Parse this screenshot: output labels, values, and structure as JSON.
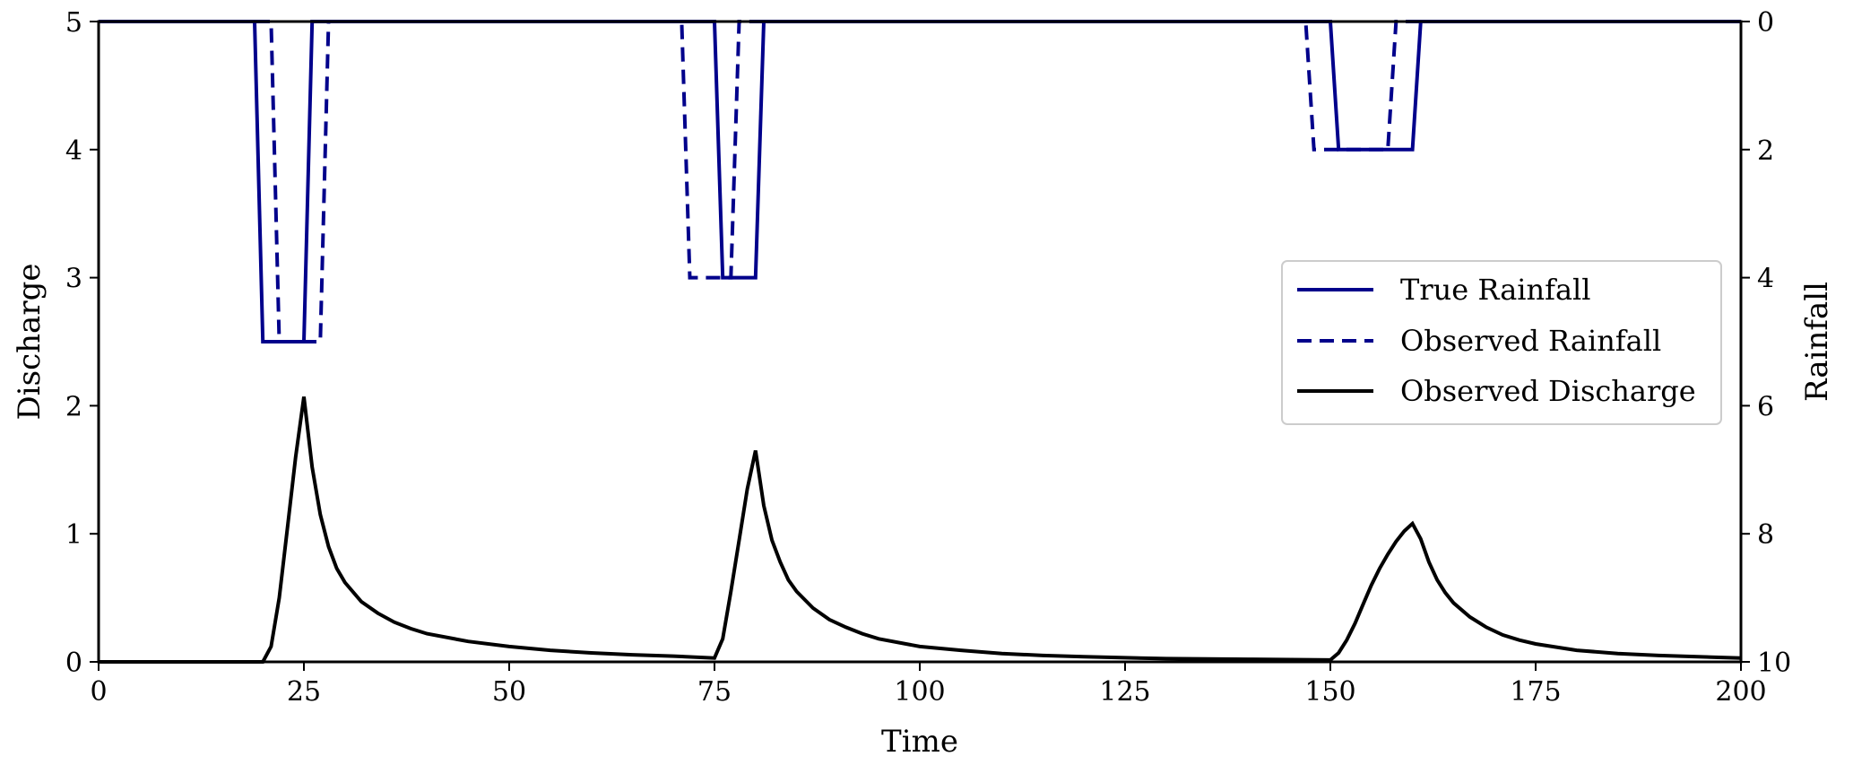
{
  "chart_data": {
    "type": "line",
    "title": "",
    "xlabel": "Time",
    "ylabel_left": "Discharge",
    "ylabel_right": "Rainfall",
    "xlim": [
      0,
      200
    ],
    "ylim_left": [
      0,
      5
    ],
    "ylim_right_inverted": [
      0,
      10
    ],
    "xticks": [
      "0",
      "25",
      "50",
      "75",
      "100",
      "125",
      "150",
      "175",
      "200"
    ],
    "yticks_left": [
      "0",
      "1",
      "2",
      "3",
      "4",
      "5"
    ],
    "yticks_right": [
      "0",
      "2",
      "4",
      "6",
      "8",
      "10"
    ],
    "grid": false,
    "legend_position": "center-right",
    "colors": {
      "rainfall": "#00008b",
      "discharge": "#000000"
    },
    "series": [
      {
        "name": "True Rainfall",
        "axis": "right",
        "style": "solid",
        "x": [
          0,
          19,
          20,
          25,
          26,
          75,
          76,
          80,
          81,
          150,
          151,
          160,
          161,
          200
        ],
        "y": [
          0,
          0,
          5,
          5,
          0,
          0,
          4,
          4,
          0,
          0,
          2,
          2,
          0,
          0
        ]
      },
      {
        "name": "Observed Rainfall",
        "axis": "right",
        "style": "dashed",
        "x": [
          0,
          21,
          22,
          27,
          28,
          71,
          72,
          77,
          78,
          147,
          148,
          157,
          158,
          200
        ],
        "y": [
          0,
          0,
          5,
          5,
          0,
          0,
          4,
          4,
          0,
          0,
          2,
          2,
          0,
          0
        ]
      },
      {
        "name": "Observed Discharge",
        "axis": "left",
        "style": "solid",
        "x": [
          0,
          20,
          21,
          22,
          23,
          24,
          25,
          26,
          27,
          28,
          29,
          30,
          32,
          34,
          36,
          38,
          40,
          45,
          50,
          55,
          60,
          65,
          70,
          75,
          76,
          77,
          78,
          79,
          80,
          81,
          82,
          83,
          84,
          85,
          87,
          89,
          91,
          93,
          95,
          100,
          105,
          110,
          115,
          120,
          130,
          140,
          150,
          151,
          152,
          153,
          154,
          155,
          156,
          157,
          158,
          159,
          160,
          161,
          162,
          163,
          164,
          165,
          167,
          169,
          171,
          173,
          175,
          180,
          185,
          190,
          200
        ],
        "y": [
          0,
          0,
          0.12,
          0.5,
          1.05,
          1.6,
          2.07,
          1.52,
          1.15,
          0.9,
          0.73,
          0.62,
          0.47,
          0.38,
          0.31,
          0.26,
          0.22,
          0.16,
          0.12,
          0.09,
          0.07,
          0.055,
          0.045,
          0.03,
          0.18,
          0.55,
          0.95,
          1.35,
          1.65,
          1.22,
          0.95,
          0.78,
          0.64,
          0.55,
          0.42,
          0.33,
          0.27,
          0.22,
          0.18,
          0.12,
          0.09,
          0.065,
          0.05,
          0.04,
          0.025,
          0.02,
          0.015,
          0.07,
          0.17,
          0.3,
          0.45,
          0.6,
          0.73,
          0.84,
          0.94,
          1.02,
          1.08,
          0.96,
          0.78,
          0.64,
          0.54,
          0.46,
          0.35,
          0.27,
          0.21,
          0.17,
          0.14,
          0.09,
          0.065,
          0.05,
          0.03
        ]
      }
    ]
  }
}
